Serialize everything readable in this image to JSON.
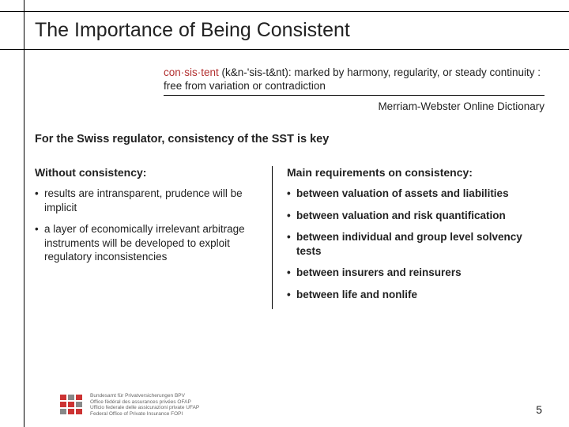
{
  "title": "The Importance of Being Consistent",
  "definition": {
    "word": "con·sis·tent",
    "pron": "(k&n-'sis-t&nt): ",
    "body": "marked by harmony, regularity, or steady continuity : free from variation or contradiction",
    "attribution": "Merriam-Webster Online Dictionary"
  },
  "subhead": "For the Swiss regulator, consistency of the SST is key",
  "left": {
    "heading": "Without consistency:",
    "items": [
      "results are intransparent, prudence will be implicit",
      "a layer of economically irrelevant arbitrage instruments will be developed to exploit regulatory inconsistencies"
    ]
  },
  "right": {
    "heading": "Main requirements on consistency:",
    "items": [
      "between valuation of assets and liabilities",
      "between valuation and risk quantification",
      "between individual and group level solvency tests",
      "between insurers and reinsurers",
      "between life and nonlife"
    ]
  },
  "footer": {
    "org_lines": [
      "Bundesamt für Privatversicherungen BPV",
      "Office fédéral des assurances privées OFAP",
      "Ufficio federale delle assicurazioni private UFAP",
      "Federal Office of Private Insurance FOPI"
    ],
    "page": "5"
  },
  "colors": {
    "accent_red": "#b23030",
    "logo_red": "#c33",
    "rule": "#000000",
    "text": "#222222"
  }
}
